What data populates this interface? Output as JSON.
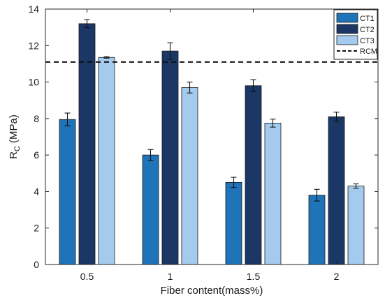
{
  "chart_data": {
    "type": "bar",
    "title": "",
    "xlabel": "Fiber content(mass%)",
    "ylabel_main": "R",
    "ylabel_sub": "C",
    "ylabel_unit": " (MPa)",
    "categories": [
      "0.5",
      "1",
      "1.5",
      "2"
    ],
    "ylim": [
      0,
      14
    ],
    "yticks": [
      "0",
      "2",
      "4",
      "6",
      "8",
      "10",
      "12",
      "14"
    ],
    "grid": false,
    "legend_position": "top-right",
    "series": [
      {
        "name": "CT1",
        "color": "#1f73b8",
        "values": [
          7.95,
          6.0,
          4.5,
          3.8
        ],
        "errors": [
          0.35,
          0.3,
          0.28,
          0.32
        ]
      },
      {
        "name": "CT2",
        "color": "#1b3766",
        "values": [
          13.2,
          11.7,
          9.8,
          8.1
        ],
        "errors": [
          0.22,
          0.45,
          0.33,
          0.25
        ]
      },
      {
        "name": "CT3",
        "color": "#a4cbee",
        "values": [
          11.35,
          9.7,
          7.75,
          4.3
        ],
        "errors": [
          0.04,
          0.3,
          0.22,
          0.12
        ]
      }
    ],
    "reference_line": {
      "name": "RCM",
      "value": 11.1,
      "style": "dashed"
    }
  }
}
